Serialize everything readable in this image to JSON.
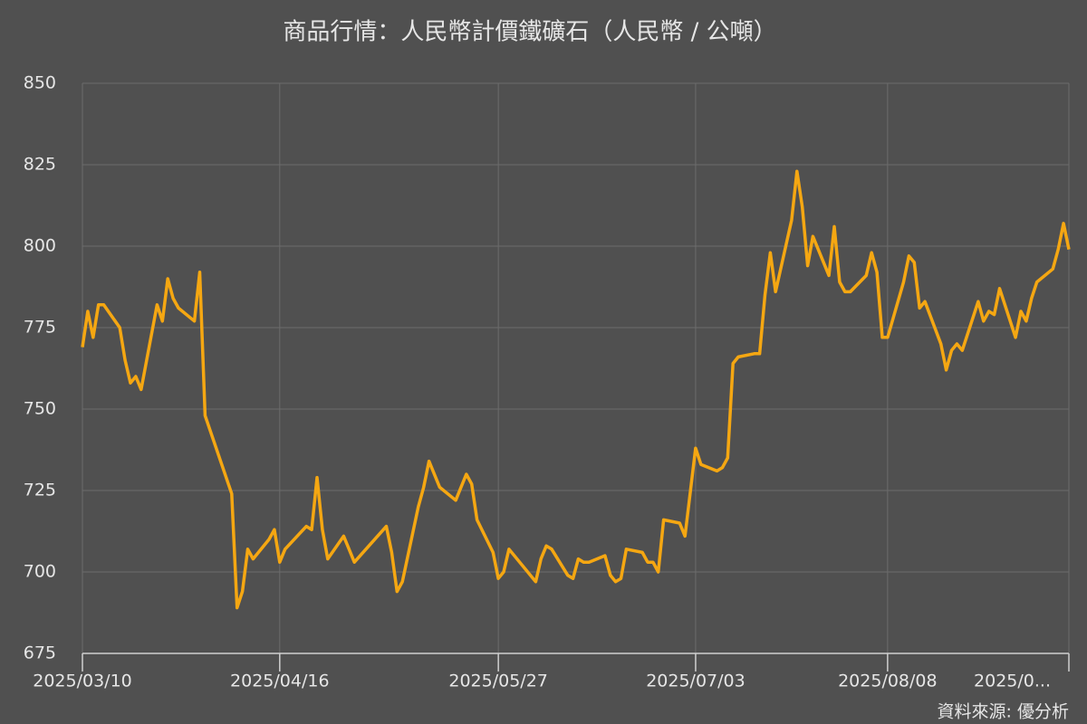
{
  "chart_data": {
    "type": "line",
    "title": "商品行情：人民幣計價鐵礦石（人民幣 / 公噸）",
    "source": "資料來源: 優分析",
    "x": [
      "2025/03/10",
      "2025/03/11",
      "2025/03/12",
      "2025/03/13",
      "2025/03/14",
      "2025/03/17",
      "2025/03/18",
      "2025/03/19",
      "2025/03/20",
      "2025/03/21",
      "2025/03/24",
      "2025/03/25",
      "2025/03/26",
      "2025/03/27",
      "2025/03/28",
      "2025/03/31",
      "2025/04/01",
      "2025/04/02",
      "2025/04/07",
      "2025/04/08",
      "2025/04/09",
      "2025/04/10",
      "2025/04/11",
      "2025/04/14",
      "2025/04/15",
      "2025/04/16",
      "2025/04/17",
      "2025/04/21",
      "2025/04/22",
      "2025/04/23",
      "2025/04/24",
      "2025/04/25",
      "2025/04/28",
      "2025/04/30",
      "2025/05/06",
      "2025/05/07",
      "2025/05/08",
      "2025/05/09",
      "2025/05/12",
      "2025/05/13",
      "2025/05/14",
      "2025/05/16",
      "2025/05/19",
      "2025/05/21",
      "2025/05/22",
      "2025/05/23",
      "2025/05/26",
      "2025/05/27",
      "2025/05/28",
      "2025/05/29",
      "2025/06/03",
      "2025/06/04",
      "2025/06/05",
      "2025/06/06",
      "2025/06/09",
      "2025/06/10",
      "2025/06/11",
      "2025/06/12",
      "2025/06/13",
      "2025/06/16",
      "2025/06/17",
      "2025/06/18",
      "2025/06/19",
      "2025/06/20",
      "2025/06/23",
      "2025/06/24",
      "2025/06/25",
      "2025/06/26",
      "2025/06/27",
      "2025/06/30",
      "2025/07/01",
      "2025/07/03",
      "2025/07/04",
      "2025/07/07",
      "2025/07/08",
      "2025/07/09",
      "2025/07/10",
      "2025/07/11",
      "2025/07/14",
      "2025/07/15",
      "2025/07/16",
      "2025/07/17",
      "2025/07/18",
      "2025/07/21",
      "2025/07/22",
      "2025/07/23",
      "2025/07/24",
      "2025/07/25",
      "2025/07/28",
      "2025/07/29",
      "2025/07/30",
      "2025/07/31",
      "2025/08/01",
      "2025/08/04",
      "2025/08/05",
      "2025/08/06",
      "2025/08/07",
      "2025/08/08",
      "2025/08/11",
      "2025/08/12",
      "2025/08/13",
      "2025/08/14",
      "2025/08/15",
      "2025/08/18",
      "2025/08/19",
      "2025/08/20",
      "2025/08/21",
      "2025/08/22",
      "2025/08/25",
      "2025/08/26",
      "2025/08/27",
      "2025/08/28",
      "2025/08/29",
      "2025/09/01",
      "2025/09/02",
      "2025/09/03",
      "2025/09/04",
      "2025/09/05",
      "2025/09/08",
      "2025/09/09",
      "2025/09/10",
      "2025/09/11"
    ],
    "series": [
      {
        "color": "#f5a712",
        "values": [
          769,
          780,
          772,
          782,
          782,
          775,
          765,
          758,
          760,
          756,
          782,
          777,
          790,
          784,
          781,
          777,
          792,
          748,
          724,
          689,
          694,
          707,
          704,
          710,
          713,
          703,
          707,
          714,
          713,
          729,
          713,
          704,
          711,
          703,
          714,
          706,
          694,
          697,
          720,
          726,
          734,
          726,
          722,
          730,
          727,
          716,
          706,
          698,
          700,
          707,
          697,
          704,
          708,
          707,
          699,
          698,
          704,
          703,
          703,
          705,
          699,
          697,
          698,
          707,
          706,
          703,
          703,
          700,
          716,
          715,
          711,
          738,
          733,
          731,
          732,
          735,
          764,
          766,
          767,
          767,
          785,
          798,
          786,
          808,
          823,
          812,
          794,
          803,
          791,
          806,
          789,
          786,
          786,
          791,
          798,
          792,
          772,
          772,
          789,
          797,
          795,
          781,
          783,
          770,
          762,
          768,
          770,
          768,
          783,
          777,
          780,
          779,
          787,
          772,
          780,
          777,
          784,
          789,
          793,
          799,
          807,
          799
        ]
      }
    ],
    "xlim": [
      "2025/03/10",
      "2025/09/11"
    ],
    "xticks": [
      "2025/03/10",
      "2025/04/16",
      "2025/05/27",
      "2025/07/03",
      "2025/08/08",
      {
        "value": "2025/09/11",
        "label": "2025/0..."
      }
    ],
    "ylim": [
      675,
      850
    ],
    "yticks": [
      675,
      700,
      725,
      750,
      775,
      800,
      825,
      850
    ],
    "grid": true
  }
}
